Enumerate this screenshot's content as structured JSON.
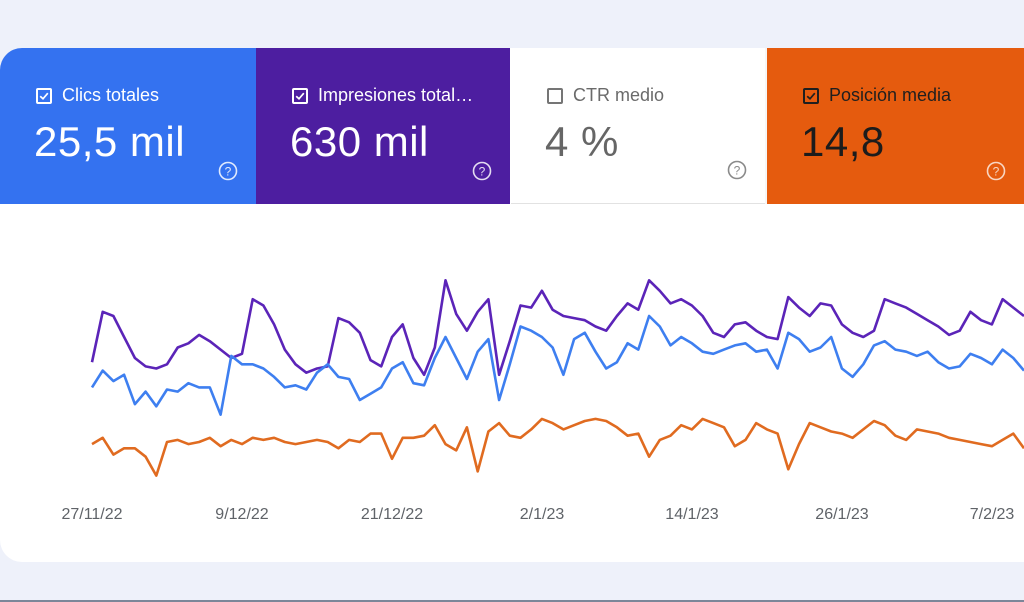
{
  "cards": [
    {
      "label": "Clics totales",
      "value": "25,5 mil",
      "checked": true,
      "color": "#3472f0"
    },
    {
      "label": "Impresiones total…",
      "value": "630 mil",
      "checked": true,
      "color": "#4d1ea0"
    },
    {
      "label": "CTR medio",
      "value": "4 %",
      "checked": false,
      "color": "#ffffff"
    },
    {
      "label": "Posición media",
      "value": "14,8",
      "checked": true,
      "color": "#e55b0e"
    }
  ],
  "chart_data": {
    "type": "line",
    "x_ticks": [
      "27/11/22",
      "9/12/22",
      "21/12/22",
      "2/1/23",
      "14/1/23",
      "26/1/23",
      "7/2/23"
    ],
    "series": [
      {
        "color": "#5b24b8",
        "values": [
          0.58,
          0.82,
          0.8,
          0.7,
          0.6,
          0.56,
          0.55,
          0.57,
          0.65,
          0.67,
          0.71,
          0.68,
          0.64,
          0.6,
          0.62,
          0.88,
          0.85,
          0.76,
          0.64,
          0.57,
          0.53,
          0.55,
          0.56,
          0.79,
          0.77,
          0.72,
          0.59,
          0.56,
          0.7,
          0.76,
          0.6,
          0.52,
          0.65,
          0.97,
          0.81,
          0.73,
          0.82,
          0.88,
          0.52,
          0.68,
          0.85,
          0.84,
          0.92,
          0.83,
          0.8,
          0.79,
          0.78,
          0.75,
          0.73,
          0.8,
          0.86,
          0.83,
          0.97,
          0.92,
          0.86,
          0.88,
          0.85,
          0.8,
          0.72,
          0.7,
          0.76,
          0.77,
          0.73,
          0.7,
          0.69,
          0.89,
          0.84,
          0.8,
          0.86,
          0.85,
          0.76,
          0.72,
          0.7,
          0.73,
          0.88,
          0.86,
          0.84,
          0.81,
          0.78,
          0.75,
          0.71,
          0.73,
          0.82,
          0.78,
          0.76,
          0.88,
          0.84,
          0.8
        ]
      },
      {
        "color": "#3e7ff0",
        "values": [
          0.46,
          0.54,
          0.49,
          0.52,
          0.38,
          0.44,
          0.37,
          0.45,
          0.44,
          0.48,
          0.46,
          0.46,
          0.33,
          0.61,
          0.57,
          0.57,
          0.55,
          0.51,
          0.46,
          0.47,
          0.45,
          0.53,
          0.57,
          0.51,
          0.5,
          0.4,
          0.43,
          0.46,
          0.55,
          0.58,
          0.48,
          0.47,
          0.6,
          0.7,
          0.6,
          0.5,
          0.63,
          0.69,
          0.4,
          0.57,
          0.75,
          0.73,
          0.7,
          0.65,
          0.52,
          0.69,
          0.72,
          0.63,
          0.55,
          0.58,
          0.67,
          0.64,
          0.8,
          0.75,
          0.66,
          0.7,
          0.67,
          0.63,
          0.62,
          0.64,
          0.66,
          0.67,
          0.63,
          0.64,
          0.55,
          0.72,
          0.69,
          0.63,
          0.65,
          0.7,
          0.55,
          0.51,
          0.57,
          0.66,
          0.68,
          0.64,
          0.63,
          0.61,
          0.63,
          0.58,
          0.55,
          0.56,
          0.62,
          0.6,
          0.57,
          0.64,
          0.6,
          0.54
        ]
      },
      {
        "color": "#e06b20",
        "values": [
          0.19,
          0.22,
          0.14,
          0.17,
          0.17,
          0.13,
          0.04,
          0.2,
          0.21,
          0.19,
          0.2,
          0.22,
          0.18,
          0.21,
          0.19,
          0.22,
          0.21,
          0.22,
          0.2,
          0.19,
          0.2,
          0.21,
          0.2,
          0.17,
          0.21,
          0.2,
          0.24,
          0.24,
          0.12,
          0.22,
          0.22,
          0.23,
          0.28,
          0.19,
          0.16,
          0.27,
          0.06,
          0.25,
          0.29,
          0.23,
          0.22,
          0.26,
          0.31,
          0.29,
          0.26,
          0.28,
          0.3,
          0.31,
          0.3,
          0.27,
          0.23,
          0.24,
          0.13,
          0.21,
          0.23,
          0.28,
          0.26,
          0.31,
          0.29,
          0.27,
          0.18,
          0.21,
          0.29,
          0.26,
          0.24,
          0.07,
          0.19,
          0.29,
          0.27,
          0.25,
          0.24,
          0.22,
          0.26,
          0.3,
          0.28,
          0.23,
          0.21,
          0.26,
          0.25,
          0.24,
          0.22,
          0.21,
          0.2,
          0.19,
          0.18,
          0.21,
          0.24,
          0.17
        ]
      }
    ]
  },
  "icons": {
    "checkbox": "check-icon",
    "help": "help-circle-icon"
  }
}
